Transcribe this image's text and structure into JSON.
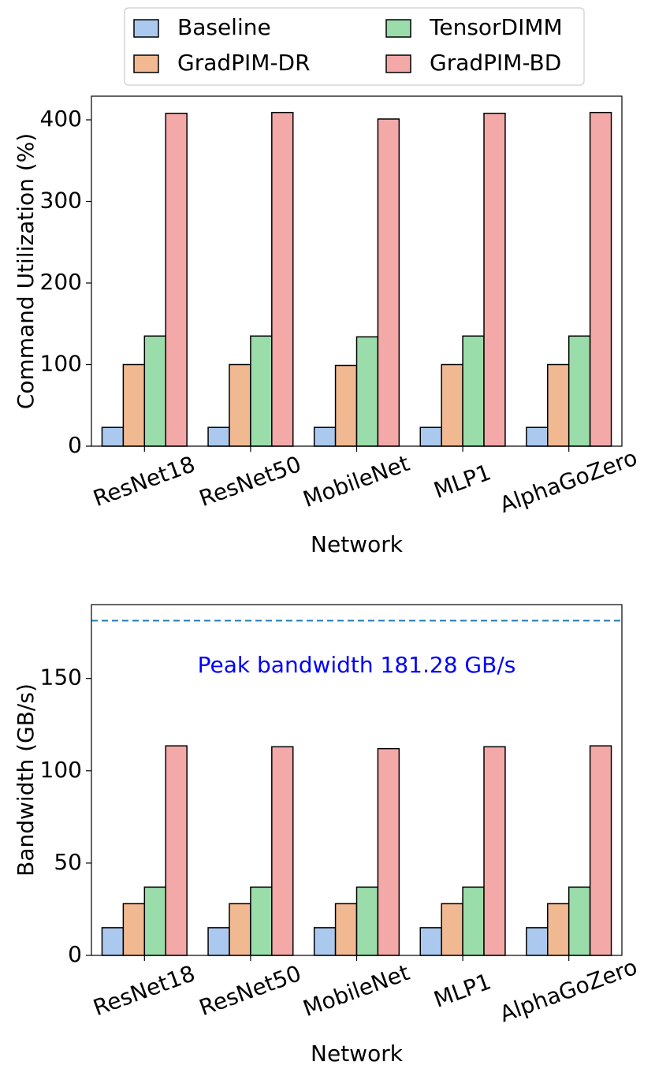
{
  "chart_data": [
    {
      "type": "bar",
      "x_label": "Network",
      "y_label": "Command Utilization (%)",
      "categories": [
        "ResNet18",
        "ResNet50",
        "MobileNet",
        "MLP1",
        "AlphaGoZero"
      ],
      "series": [
        {
          "name": "Baseline",
          "color": "#abc9ee",
          "values": [
            23,
            23,
            23,
            23,
            23
          ]
        },
        {
          "name": "GradPIM-DR",
          "color": "#f1b991",
          "values": [
            100,
            100,
            99,
            100,
            100
          ]
        },
        {
          "name": "TensorDIMM",
          "color": "#9adcaa",
          "values": [
            135,
            135,
            134,
            135,
            135
          ]
        },
        {
          "name": "GradPIM-BD",
          "color": "#f3a9a8",
          "values": [
            408,
            409,
            401,
            408,
            409
          ]
        }
      ],
      "ylim": [
        0,
        429
      ],
      "yticks": [
        0,
        100,
        200,
        300,
        400
      ],
      "legend": "top"
    },
    {
      "type": "bar",
      "x_label": "Network",
      "y_label": "Bandwidth (GB/s)",
      "categories": [
        "ResNet18",
        "ResNet50",
        "MobileNet",
        "MLP1",
        "AlphaGoZero"
      ],
      "series": [
        {
          "name": "Baseline",
          "color": "#abc9ee",
          "values": [
            15,
            15,
            15,
            15,
            15
          ]
        },
        {
          "name": "GradPIM-DR",
          "color": "#f1b991",
          "values": [
            28,
            28,
            28,
            28,
            28
          ]
        },
        {
          "name": "TensorDIMM",
          "color": "#9adcaa",
          "values": [
            37,
            37,
            37,
            37,
            37
          ]
        },
        {
          "name": "GradPIM-BD",
          "color": "#f3a9a8",
          "values": [
            113.5,
            113,
            112,
            113,
            113.5
          ]
        }
      ],
      "ylim": [
        0,
        190
      ],
      "yticks": [
        0,
        50,
        100,
        150
      ],
      "reference_line": {
        "value": 181.28,
        "color": "#1f77b4",
        "dashed": true
      },
      "annotation": "Peak bandwidth 181.28 GB/s",
      "annotation_color": "#0000ff"
    }
  ]
}
